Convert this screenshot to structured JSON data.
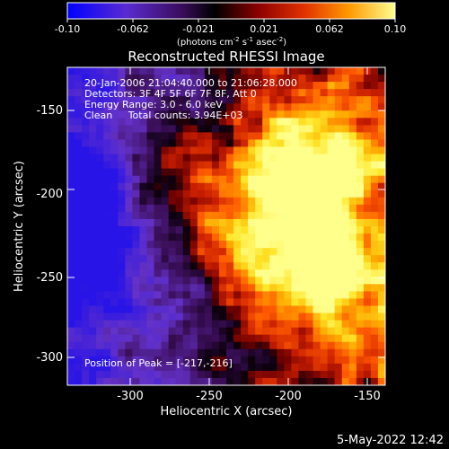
{
  "colorbar": {
    "ticks": [
      "-0.10",
      "-0.062",
      "-0.021",
      "0.021",
      "0.062",
      "0.10"
    ],
    "unit_prefix": "(photons cm",
    "unit_exp1": "-2",
    "unit_mid1": " s",
    "unit_exp2": "-1",
    "unit_mid2": " asec",
    "unit_exp3": "-2",
    "unit_suffix": ")"
  },
  "image": {
    "title": "Reconstructed RHESSI Image",
    "info_lines": [
      "20-Jan-2006 21:04:40.000 to 21:06:28.000",
      "Detectors: 3F 4F 5F 6F 7F 8F, Att 0",
      "Energy Range: 3.0 - 6.0 keV",
      "Clean     Total counts: 3.94E+03"
    ],
    "peak_label": "Position of Peak = [-217,-216]"
  },
  "axes": {
    "xlabel": "Heliocentric X (arcsec)",
    "ylabel": "Heliocentric Y (arcsec)",
    "xticks": [
      "-300",
      "-250",
      "-200",
      "-150"
    ],
    "yticks": [
      "-150",
      "-200",
      "-250",
      "-300"
    ]
  },
  "timestamp": "5-May-2022 12:42",
  "colors": {
    "background": "#000000",
    "foreground": "#ffffff",
    "colormap": [
      "#0000ff",
      "#3a0a8a",
      "#2a0a3a",
      "#000000",
      "#5a0000",
      "#c81400",
      "#ff6a00",
      "#ffc000",
      "#ffff60"
    ]
  }
}
